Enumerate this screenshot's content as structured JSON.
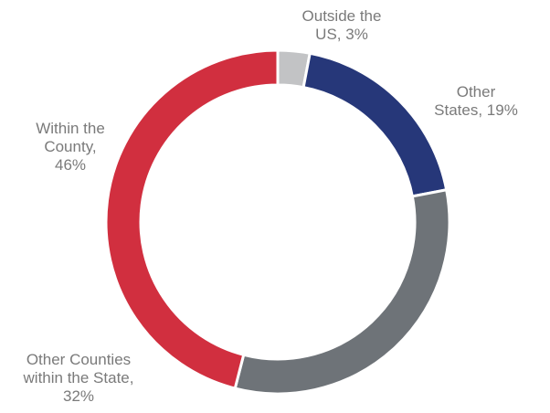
{
  "chart_data": {
    "type": "pie",
    "donut": true,
    "title": "",
    "legend": "none (labels placed beside slices)",
    "slices": [
      {
        "label_lines": [
          "Outside the",
          "US, 3%"
        ],
        "name": "Outside the US",
        "value": 3,
        "color": "#c2c3c5"
      },
      {
        "label_lines": [
          "Other",
          "States, 19%"
        ],
        "name": "Other States",
        "value": 19,
        "color": "#263779"
      },
      {
        "label_lines": [
          "Other Counties",
          "within the State,",
          "32%"
        ],
        "name": "Other Counties within the State",
        "value": 32,
        "color": "#6e7378"
      },
      {
        "label_lines": [
          "Within the",
          "County,",
          "46%"
        ],
        "name": "Within the County",
        "value": 46,
        "color": "#d12f3f"
      }
    ]
  }
}
